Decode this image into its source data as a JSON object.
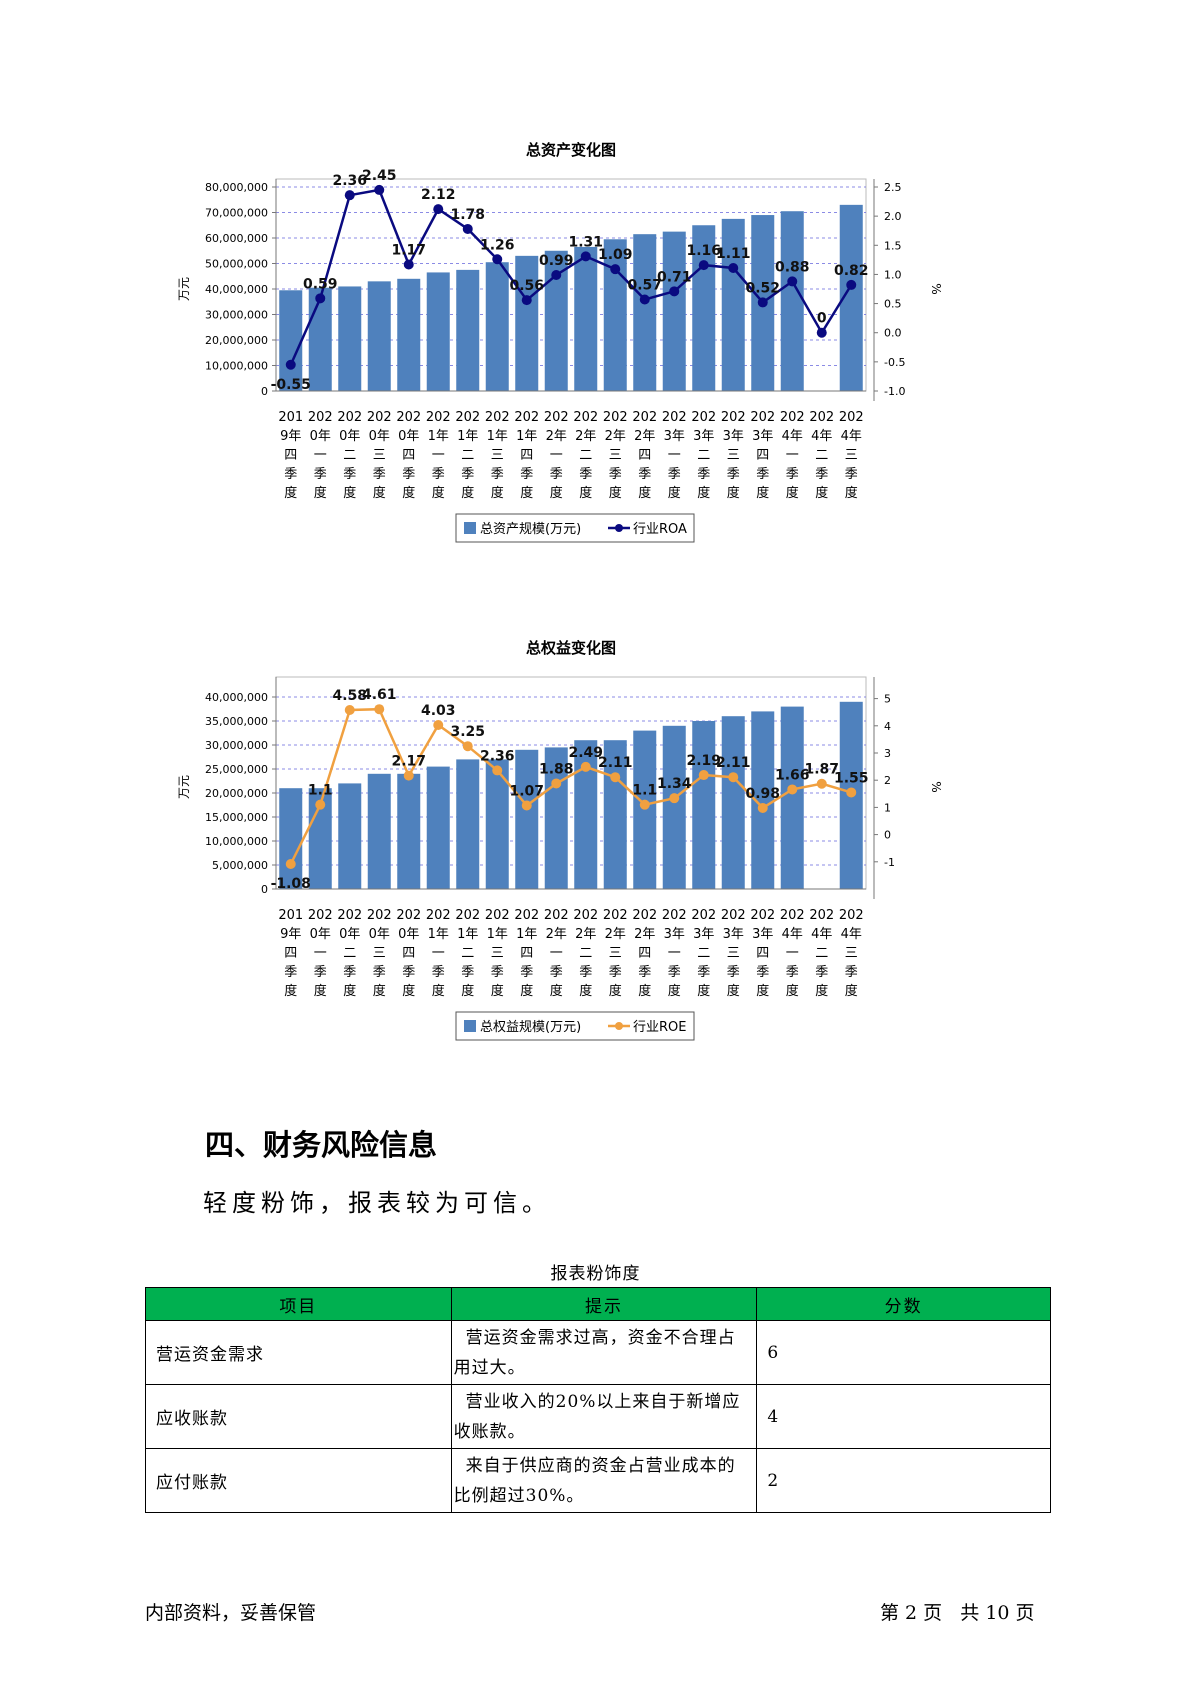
{
  "chart_data": [
    {
      "type": "bar",
      "title": "总资产变化图",
      "ylabel": "万元",
      "y2label": "%",
      "ylim": [
        0,
        80000000
      ],
      "y2lim": [
        -1.0,
        2.5
      ],
      "yticks": [
        "0",
        "10,000,000",
        "20,000,000",
        "30,000,000",
        "40,000,000",
        "50,000,000",
        "60,000,000",
        "70,000,000",
        "80,000,000"
      ],
      "y2ticks": [
        "-1.0",
        "-0.5",
        "0.0",
        "0.5",
        "1.0",
        "1.5",
        "2.0",
        "2.5"
      ],
      "grid": true,
      "legend_position": "bottom",
      "line_color": "#0a0a80",
      "bar_color": "#4f81bd",
      "categories": [
        [
          "201",
          "9年",
          "四",
          "季",
          "度"
        ],
        [
          "202",
          "0年",
          "一",
          "季",
          "度"
        ],
        [
          "202",
          "0年",
          "二",
          "季",
          "度"
        ],
        [
          "202",
          "0年",
          "三",
          "季",
          "度"
        ],
        [
          "202",
          "0年",
          "四",
          "季",
          "度"
        ],
        [
          "202",
          "1年",
          "一",
          "季",
          "度"
        ],
        [
          "202",
          "1年",
          "二",
          "季",
          "度"
        ],
        [
          "202",
          "1年",
          "三",
          "季",
          "度"
        ],
        [
          "202",
          "1年",
          "四",
          "季",
          "度"
        ],
        [
          "202",
          "2年",
          "一",
          "季",
          "度"
        ],
        [
          "202",
          "2年",
          "二",
          "季",
          "度"
        ],
        [
          "202",
          "2年",
          "三",
          "季",
          "度"
        ],
        [
          "202",
          "2年",
          "四",
          "季",
          "度"
        ],
        [
          "202",
          "3年",
          "一",
          "季",
          "度"
        ],
        [
          "202",
          "3年",
          "二",
          "季",
          "度"
        ],
        [
          "202",
          "3年",
          "三",
          "季",
          "度"
        ],
        [
          "202",
          "3年",
          "四",
          "季",
          "度"
        ],
        [
          "202",
          "4年",
          "一",
          "季",
          "度"
        ],
        [
          "202",
          "4年",
          "二",
          "季",
          "度"
        ],
        [
          "202",
          "4年",
          "三",
          "季",
          "度"
        ]
      ],
      "series": [
        {
          "name": "总资产规模(万元)",
          "type": "bar",
          "values": [
            39500000,
            40500000,
            41000000,
            43000000,
            44000000,
            46500000,
            47500000,
            50500000,
            53000000,
            55000000,
            56500000,
            59500000,
            61500000,
            62500000,
            65000000,
            67500000,
            69000000,
            70500000,
            null,
            73000000
          ]
        },
        {
          "name": "行业ROA",
          "type": "line",
          "values": [
            -0.55,
            0.59,
            2.36,
            2.45,
            1.17,
            2.12,
            1.78,
            1.26,
            0.56,
            0.99,
            1.31,
            1.09,
            0.57,
            0.71,
            1.16,
            1.11,
            0.52,
            0.88,
            0,
            0.82
          ],
          "labels": [
            "-0.55",
            "0.59",
            "2.36",
            "2.45",
            "1.17",
            "2.12",
            "1.78",
            "1.26",
            "0.56",
            "0.99",
            "1.31",
            "1.09",
            "0.57",
            "0.71",
            "1.16",
            "1.11",
            "0.52",
            "0.88",
            "0",
            "0.82"
          ]
        }
      ]
    },
    {
      "type": "bar",
      "title": "总权益变化图",
      "ylabel": "万元",
      "y2label": "%",
      "ylim": [
        0,
        42500000
      ],
      "y2lim": [
        -2,
        5.5
      ],
      "yticks": [
        "0",
        "5,000,000",
        "10,000,000",
        "15,000,000",
        "20,000,000",
        "25,000,000",
        "30,000,000",
        "35,000,000",
        "40,000,000"
      ],
      "y2ticks": [
        "-1",
        "0",
        "1",
        "2",
        "3",
        "4",
        "5"
      ],
      "grid": true,
      "legend_position": "bottom",
      "line_color": "#f0a040",
      "bar_color": "#4f81bd",
      "categories": [
        [
          "201",
          "9年",
          "四",
          "季",
          "度"
        ],
        [
          "202",
          "0年",
          "一",
          "季",
          "度"
        ],
        [
          "202",
          "0年",
          "二",
          "季",
          "度"
        ],
        [
          "202",
          "0年",
          "三",
          "季",
          "度"
        ],
        [
          "202",
          "0年",
          "四",
          "季",
          "度"
        ],
        [
          "202",
          "1年",
          "一",
          "季",
          "度"
        ],
        [
          "202",
          "1年",
          "二",
          "季",
          "度"
        ],
        [
          "202",
          "1年",
          "三",
          "季",
          "度"
        ],
        [
          "202",
          "1年",
          "四",
          "季",
          "度"
        ],
        [
          "202",
          "2年",
          "一",
          "季",
          "度"
        ],
        [
          "202",
          "2年",
          "二",
          "季",
          "度"
        ],
        [
          "202",
          "2年",
          "三",
          "季",
          "度"
        ],
        [
          "202",
          "2年",
          "四",
          "季",
          "度"
        ],
        [
          "202",
          "3年",
          "一",
          "季",
          "度"
        ],
        [
          "202",
          "3年",
          "二",
          "季",
          "度"
        ],
        [
          "202",
          "3年",
          "三",
          "季",
          "度"
        ],
        [
          "202",
          "3年",
          "四",
          "季",
          "度"
        ],
        [
          "202",
          "4年",
          "一",
          "季",
          "度"
        ],
        [
          "202",
          "4年",
          "二",
          "季",
          "度"
        ],
        [
          "202",
          "4年",
          "三",
          "季",
          "度"
        ]
      ],
      "series": [
        {
          "name": "总权益规模(万元)",
          "type": "bar",
          "values": [
            21000000,
            21000000,
            22000000,
            24000000,
            24000000,
            25500000,
            27000000,
            27000000,
            29000000,
            29500000,
            31000000,
            31000000,
            33000000,
            34000000,
            35000000,
            36000000,
            37000000,
            38000000,
            null,
            39000000
          ]
        },
        {
          "name": "行业ROE",
          "type": "line",
          "values": [
            -1.08,
            1.1,
            4.58,
            4.61,
            2.17,
            4.03,
            3.25,
            2.36,
            1.07,
            1.88,
            2.49,
            2.11,
            1.1,
            1.34,
            2.19,
            2.11,
            0.98,
            1.66,
            1.87,
            1.55
          ],
          "labels": [
            "-1.08",
            "1.1",
            "4.58",
            "4.61",
            "2.17",
            "4.03",
            "3.25",
            "2.36",
            "1.07",
            "1.88",
            "2.49",
            "2.11",
            "1.1",
            "1.34",
            "2.19",
            "2.11",
            "0.98",
            "1.66",
            "1.87",
            "1.55"
          ]
        }
      ]
    }
  ],
  "section": {
    "heading": "四、财务风险信息",
    "text": "轻度粉饰，报表较为可信。"
  },
  "table": {
    "caption": "报表粉饰度",
    "header_color": "#00b050",
    "headers": [
      "项目",
      "提示",
      "分数"
    ],
    "rows": [
      {
        "item": "营运资金需求",
        "hint": "营运资金需求过高，资金不合理占用过大。",
        "score": "6"
      },
      {
        "item": "应收账款",
        "hint": "营业收入的20%以上来自于新增应收账款。",
        "score": "4"
      },
      {
        "item": "应付账款",
        "hint": "来自于供应商的资金占营业成本的比例超过30%。",
        "score": "2"
      }
    ]
  },
  "footer": {
    "left": "内部资料，妥善保管",
    "right": "第 2 页   共 10 页"
  }
}
